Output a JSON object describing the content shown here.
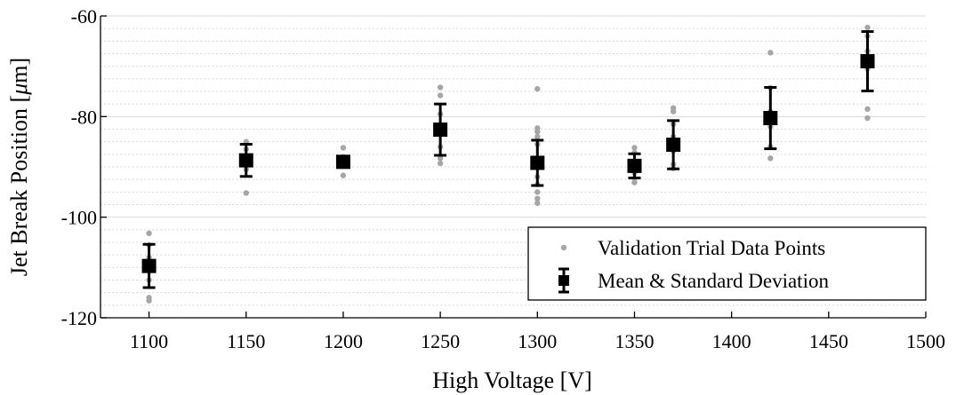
{
  "chart_data": {
    "type": "scatter",
    "title": "",
    "xlabel": "High Voltage [V]",
    "ylabel_prefix": "Jet Break Position [",
    "ylabel_mu": "μ",
    "ylabel_suffix": "m]",
    "xlim": [
      1075,
      1500
    ],
    "ylim": [
      -120,
      -60
    ],
    "xticks": [
      1100,
      1150,
      1200,
      1250,
      1300,
      1350,
      1400,
      1450,
      1500
    ],
    "yticks": [
      -120,
      -100,
      -80,
      -60
    ],
    "yminor_step": 2.5,
    "grid": "on",
    "legend_position": "bottom-right",
    "colors": {
      "points": "#a6a6a6",
      "mean": "#000000",
      "grid_major": "#d9d9d9",
      "grid_minor": "#cccccc"
    },
    "series": [
      {
        "name": "Validation Trial Data Points",
        "type": "scatter",
        "points": [
          {
            "x": 1100,
            "y": -103.2
          },
          {
            "x": 1100,
            "y": -105.5
          },
          {
            "x": 1100,
            "y": -108
          },
          {
            "x": 1100,
            "y": -110.2
          },
          {
            "x": 1100,
            "y": -112.5
          },
          {
            "x": 1100,
            "y": -116
          },
          {
            "x": 1100,
            "y": -116.6
          },
          {
            "x": 1150,
            "y": -85
          },
          {
            "x": 1150,
            "y": -86.5
          },
          {
            "x": 1150,
            "y": -88
          },
          {
            "x": 1150,
            "y": -89.3
          },
          {
            "x": 1150,
            "y": -90.5
          },
          {
            "x": 1150,
            "y": -95.2
          },
          {
            "x": 1200,
            "y": -86.2
          },
          {
            "x": 1200,
            "y": -88
          },
          {
            "x": 1200,
            "y": -88.8
          },
          {
            "x": 1200,
            "y": -89.8
          },
          {
            "x": 1200,
            "y": -91.7
          },
          {
            "x": 1250,
            "y": -74.2
          },
          {
            "x": 1250,
            "y": -75.8
          },
          {
            "x": 1250,
            "y": -79.5
          },
          {
            "x": 1250,
            "y": -83
          },
          {
            "x": 1250,
            "y": -86
          },
          {
            "x": 1250,
            "y": -88.3
          },
          {
            "x": 1250,
            "y": -89.3
          },
          {
            "x": 1300,
            "y": -74.5
          },
          {
            "x": 1300,
            "y": -82.3
          },
          {
            "x": 1300,
            "y": -83
          },
          {
            "x": 1300,
            "y": -84
          },
          {
            "x": 1300,
            "y": -85.5
          },
          {
            "x": 1300,
            "y": -88.8
          },
          {
            "x": 1300,
            "y": -92
          },
          {
            "x": 1300,
            "y": -93.5
          },
          {
            "x": 1300,
            "y": -95
          },
          {
            "x": 1300,
            "y": -96.3
          },
          {
            "x": 1300,
            "y": -97.2
          },
          {
            "x": 1350,
            "y": -86.2
          },
          {
            "x": 1350,
            "y": -87.2
          },
          {
            "x": 1350,
            "y": -89.5
          },
          {
            "x": 1350,
            "y": -91.2
          },
          {
            "x": 1350,
            "y": -92.3
          },
          {
            "x": 1350,
            "y": -93.1
          },
          {
            "x": 1370,
            "y": -78.3
          },
          {
            "x": 1370,
            "y": -79
          },
          {
            "x": 1370,
            "y": -81.5
          },
          {
            "x": 1370,
            "y": -84
          },
          {
            "x": 1370,
            "y": -86.8
          },
          {
            "x": 1370,
            "y": -89.5
          },
          {
            "x": 1370,
            "y": -90.3
          },
          {
            "x": 1420,
            "y": -67.3
          },
          {
            "x": 1420,
            "y": -74.3
          },
          {
            "x": 1420,
            "y": -79
          },
          {
            "x": 1420,
            "y": -82
          },
          {
            "x": 1420,
            "y": -86
          },
          {
            "x": 1420,
            "y": -88.3
          },
          {
            "x": 1470,
            "y": -62.3
          },
          {
            "x": 1470,
            "y": -64
          },
          {
            "x": 1470,
            "y": -67
          },
          {
            "x": 1470,
            "y": -70.5
          },
          {
            "x": 1470,
            "y": -78.5
          },
          {
            "x": 1470,
            "y": -80.3
          }
        ]
      },
      {
        "name": "Mean & Standard Deviation",
        "type": "errorbar",
        "points": [
          {
            "x": 1100,
            "y": -109.7,
            "sd": 4.3
          },
          {
            "x": 1150,
            "y": -88.7,
            "sd": 3.2
          },
          {
            "x": 1200,
            "y": -89.0,
            "sd": 1.0
          },
          {
            "x": 1250,
            "y": -82.6,
            "sd": 5.1
          },
          {
            "x": 1300,
            "y": -89.2,
            "sd": 4.5
          },
          {
            "x": 1350,
            "y": -89.8,
            "sd": 2.4
          },
          {
            "x": 1370,
            "y": -85.6,
            "sd": 4.8
          },
          {
            "x": 1420,
            "y": -80.3,
            "sd": 6.1
          },
          {
            "x": 1470,
            "y": -69.0,
            "sd": 5.9
          }
        ]
      }
    ]
  }
}
